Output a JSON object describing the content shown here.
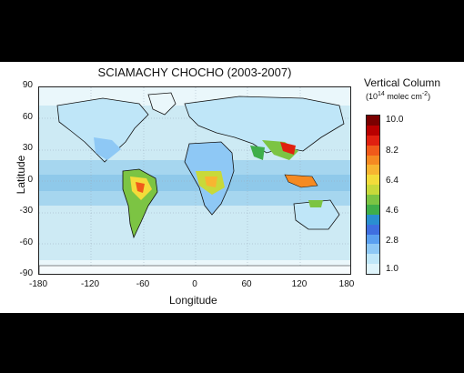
{
  "title": "SCIAMACHY CHOCHO (2003-2007)",
  "axes": {
    "xlabel": "Longitude",
    "ylabel": "Latitude",
    "x_ticks": [
      "-180",
      "-120",
      "-60",
      "0",
      "60",
      "120",
      "180"
    ],
    "y_ticks": [
      "90",
      "60",
      "30",
      "0",
      "-30",
      "-60",
      "-90"
    ]
  },
  "colorbar": {
    "title": "Vertical Column",
    "unit_prefix": "(10",
    "unit_exp": "14",
    "unit_suffix": " molec cm",
    "unit_exp2": "-2",
    "unit_close": ")",
    "ticks": [
      "10.0",
      "8.2",
      "6.4",
      "4.6",
      "2.8",
      "1.0"
    ],
    "colors": [
      "#7a0000",
      "#b80000",
      "#e02010",
      "#f05a1a",
      "#f58a22",
      "#f7b531",
      "#f3dc3a",
      "#c8d93a",
      "#7cc443",
      "#3fae4a",
      "#2a8fd0",
      "#3f6fe0",
      "#5aa0f0",
      "#8ec8f5",
      "#bfe6f8",
      "#dff4fb"
    ]
  }
}
